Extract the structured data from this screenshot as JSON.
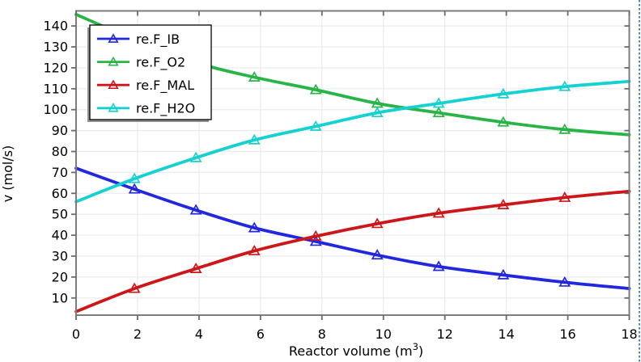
{
  "chart_data": {
    "type": "line",
    "title": "",
    "xlabel": "Reactor volume (m^3)",
    "xlabel_parts": {
      "pre": "Reactor volume (m",
      "sup": "3",
      "post": ")"
    },
    "ylabel": "v (mol/s)",
    "xlim": [
      0,
      18
    ],
    "ylim": [
      1.8,
      147.2
    ],
    "xticks": [
      0,
      2,
      4,
      6,
      8,
      10,
      12,
      14,
      16,
      18
    ],
    "yticks": [
      10,
      20,
      30,
      40,
      50,
      60,
      70,
      80,
      90,
      100,
      110,
      120,
      130,
      140
    ],
    "grid": true,
    "marker": "triangle-up-open",
    "marker_on_endpoints": false,
    "legend_position": "top-left",
    "x": [
      0,
      1.9,
      3.9,
      5.8,
      7.8,
      9.8,
      11.8,
      13.9,
      15.9,
      18
    ],
    "series": [
      {
        "name": "re.F_IB",
        "color": "#2126df",
        "values": [
          72,
          62,
          52,
          43.5,
          37,
          30.5,
          25,
          21,
          17.5,
          14.5
        ]
      },
      {
        "name": "re.F_O2",
        "color": "#28b446",
        "values": [
          145.5,
          133.5,
          122.5,
          115.5,
          109.5,
          103,
          98.5,
          94,
          90.5,
          88
        ]
      },
      {
        "name": "re.F_MAL",
        "color": "#cd1619",
        "values": [
          3.5,
          14.5,
          24,
          32.5,
          39.5,
          45.5,
          50.5,
          54.5,
          58,
          61
        ]
      },
      {
        "name": "re.F_H2O",
        "color": "#16d1d1",
        "values": [
          56,
          67,
          77,
          85.5,
          92,
          98.5,
          103,
          107.5,
          111,
          113.5
        ]
      }
    ],
    "colors": {
      "background": "#ffffff",
      "grid": "#ebebeb",
      "frame": "#7d7d7d",
      "tick": "#6a6a6a",
      "text": "#000000",
      "legend_border": "#000000",
      "legend_background": "#ffffff",
      "legend_shadow": "#8f8f8f",
      "divider": "#4a86c8"
    }
  }
}
